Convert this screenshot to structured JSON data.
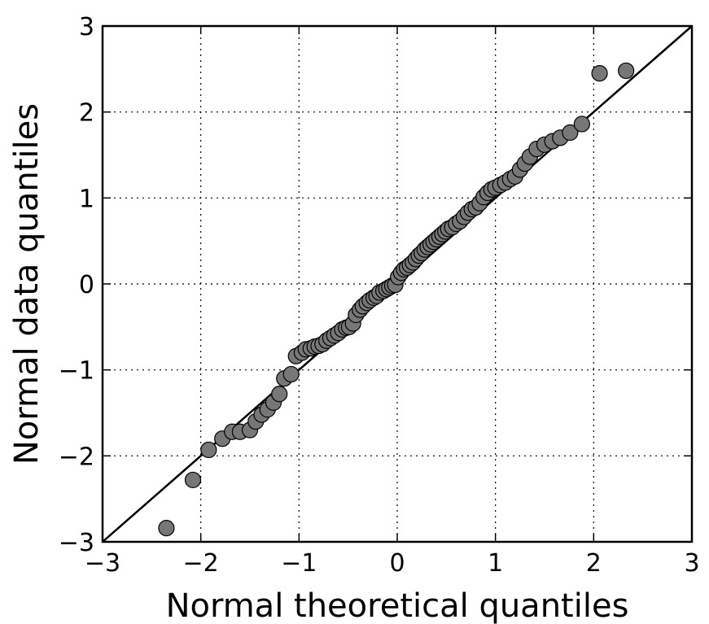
{
  "chart_data": {
    "type": "scatter",
    "title": "",
    "xlabel": "Normal theoretical quantiles",
    "ylabel": "Normal data quantiles",
    "xlim": [
      -3,
      3
    ],
    "ylim": [
      -3,
      3
    ],
    "x_ticks": [
      -3,
      -2,
      -1,
      0,
      1,
      2,
      3
    ],
    "y_ticks": [
      -3,
      -2,
      -1,
      0,
      1,
      2,
      3
    ],
    "x_tick_labels": [
      "−3",
      "−2",
      "−1",
      "0",
      "1",
      "2",
      "3"
    ],
    "y_tick_labels": [
      "−3",
      "−2",
      "−1",
      "0",
      "1",
      "2",
      "3"
    ],
    "grid": true,
    "grid_style": "dotted",
    "reference_line": {
      "from": [
        -3,
        -3
      ],
      "to": [
        3,
        3
      ],
      "color": "#000000"
    },
    "marker_color": "#777777",
    "marker_edge_color": "#000000",
    "points": [
      [
        -2.35,
        -2.84
      ],
      [
        -2.08,
        -2.28
      ],
      [
        -1.92,
        -1.93
      ],
      [
        -1.78,
        -1.8
      ],
      [
        -1.68,
        -1.72
      ],
      [
        -1.6,
        -1.72
      ],
      [
        -1.5,
        -1.7
      ],
      [
        -1.44,
        -1.6
      ],
      [
        -1.38,
        -1.52
      ],
      [
        -1.32,
        -1.46
      ],
      [
        -1.26,
        -1.38
      ],
      [
        -1.2,
        -1.28
      ],
      [
        -1.15,
        -1.1
      ],
      [
        -1.08,
        -1.05
      ],
      [
        -1.03,
        -0.84
      ],
      [
        -0.97,
        -0.8
      ],
      [
        -0.93,
        -0.76
      ],
      [
        -0.88,
        -0.75
      ],
      [
        -0.84,
        -0.73
      ],
      [
        -0.8,
        -0.72
      ],
      [
        -0.76,
        -0.7
      ],
      [
        -0.72,
        -0.66
      ],
      [
        -0.68,
        -0.63
      ],
      [
        -0.64,
        -0.6
      ],
      [
        -0.6,
        -0.57
      ],
      [
        -0.56,
        -0.53
      ],
      [
        -0.52,
        -0.51
      ],
      [
        -0.49,
        -0.5
      ],
      [
        -0.45,
        -0.46
      ],
      [
        -0.42,
        -0.36
      ],
      [
        -0.38,
        -0.3
      ],
      [
        -0.35,
        -0.26
      ],
      [
        -0.31,
        -0.22
      ],
      [
        -0.28,
        -0.19
      ],
      [
        -0.24,
        -0.16
      ],
      [
        -0.21,
        -0.14
      ],
      [
        -0.18,
        -0.1
      ],
      [
        -0.14,
        -0.08
      ],
      [
        -0.11,
        -0.06
      ],
      [
        -0.08,
        -0.04
      ],
      [
        -0.05,
        -0.02
      ],
      [
        -0.02,
        -0.01
      ],
      [
        0.01,
        0.08
      ],
      [
        0.04,
        0.13
      ],
      [
        0.07,
        0.17
      ],
      [
        0.1,
        0.19
      ],
      [
        0.13,
        0.22
      ],
      [
        0.16,
        0.25
      ],
      [
        0.19,
        0.29
      ],
      [
        0.22,
        0.33
      ],
      [
        0.25,
        0.36
      ],
      [
        0.28,
        0.4
      ],
      [
        0.31,
        0.43
      ],
      [
        0.34,
        0.46
      ],
      [
        0.37,
        0.49
      ],
      [
        0.4,
        0.52
      ],
      [
        0.43,
        0.55
      ],
      [
        0.46,
        0.58
      ],
      [
        0.49,
        0.61
      ],
      [
        0.52,
        0.64
      ],
      [
        0.56,
        0.66
      ],
      [
        0.6,
        0.7
      ],
      [
        0.64,
        0.73
      ],
      [
        0.68,
        0.78
      ],
      [
        0.72,
        0.83
      ],
      [
        0.76,
        0.87
      ],
      [
        0.8,
        0.89
      ],
      [
        0.84,
        0.94
      ],
      [
        0.88,
        1.01
      ],
      [
        0.92,
        1.06
      ],
      [
        0.96,
        1.1
      ],
      [
        1.0,
        1.12
      ],
      [
        1.05,
        1.15
      ],
      [
        1.1,
        1.18
      ],
      [
        1.15,
        1.22
      ],
      [
        1.2,
        1.25
      ],
      [
        1.25,
        1.33
      ],
      [
        1.3,
        1.4
      ],
      [
        1.35,
        1.48
      ],
      [
        1.42,
        1.57
      ],
      [
        1.5,
        1.62
      ],
      [
        1.58,
        1.66
      ],
      [
        1.66,
        1.7
      ],
      [
        1.76,
        1.76
      ],
      [
        1.88,
        1.86
      ],
      [
        2.06,
        2.45
      ],
      [
        2.33,
        2.48
      ]
    ]
  }
}
